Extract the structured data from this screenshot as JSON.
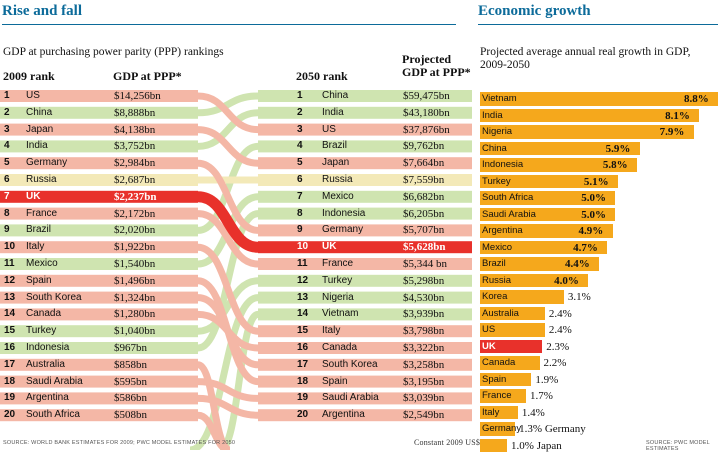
{
  "rankings": {
    "headline": "Rise and fall",
    "subtitle": "GDP at purchasing power parity (PPP) rankings",
    "col_rank_2009": "2009 rank",
    "col_gdp_2009": "GDP at PPP*",
    "col_rank_2050": "2050 rank",
    "col_gdp_2050": "Projected GDP at PPP*",
    "source": "SOURCE: WORLD BANK ESTIMATES FOR 2009; PWC MODEL ESTIMATES FOR 2050",
    "note": "Constant 2009 US$",
    "highlight_colors": {
      "rising": "#cfe4b0",
      "falling": "#f4b7a6",
      "flat": "#f3e9b8",
      "uk": "#e8312b"
    },
    "rows_2009": [
      {
        "rank": "1",
        "country": "US",
        "gdp": "$14,256bn"
      },
      {
        "rank": "2",
        "country": "China",
        "gdp": "$8,888bn"
      },
      {
        "rank": "3",
        "country": "Japan",
        "gdp": "$4,138bn"
      },
      {
        "rank": "4",
        "country": "India",
        "gdp": "$3,752bn"
      },
      {
        "rank": "5",
        "country": "Germany",
        "gdp": "$2,984bn"
      },
      {
        "rank": "6",
        "country": "Russia",
        "gdp": "$2,687bn"
      },
      {
        "rank": "7",
        "country": "UK",
        "gdp": "$2,237bn"
      },
      {
        "rank": "8",
        "country": "France",
        "gdp": "$2,172bn"
      },
      {
        "rank": "9",
        "country": "Brazil",
        "gdp": "$2,020bn"
      },
      {
        "rank": "10",
        "country": "Italy",
        "gdp": "$1,922bn"
      },
      {
        "rank": "11",
        "country": "Mexico",
        "gdp": "$1,540bn"
      },
      {
        "rank": "12",
        "country": "Spain",
        "gdp": "$1,496bn"
      },
      {
        "rank": "13",
        "country": "South Korea",
        "gdp": "$1,324bn"
      },
      {
        "rank": "14",
        "country": "Canada",
        "gdp": "$1,280bn"
      },
      {
        "rank": "15",
        "country": "Turkey",
        "gdp": "$1,040bn"
      },
      {
        "rank": "16",
        "country": "Indonesia",
        "gdp": "$967bn"
      },
      {
        "rank": "17",
        "country": "Australia",
        "gdp": "$858bn"
      },
      {
        "rank": "18",
        "country": "Saudi Arabia",
        "gdp": "$595bn"
      },
      {
        "rank": "19",
        "country": "Argentina",
        "gdp": "$586bn"
      },
      {
        "rank": "20",
        "country": "South Africa",
        "gdp": "$508bn"
      }
    ],
    "rows_2050": [
      {
        "rank": "1",
        "country": "China",
        "gdp": "$59,475bn"
      },
      {
        "rank": "2",
        "country": "India",
        "gdp": "$43,180bn"
      },
      {
        "rank": "3",
        "country": "US",
        "gdp": "$37,876bn"
      },
      {
        "rank": "4",
        "country": "Brazil",
        "gdp": "$9,762bn"
      },
      {
        "rank": "5",
        "country": "Japan",
        "gdp": "$7,664bn"
      },
      {
        "rank": "6",
        "country": "Russia",
        "gdp": "$7,559bn"
      },
      {
        "rank": "7",
        "country": "Mexico",
        "gdp": "$6,682bn"
      },
      {
        "rank": "8",
        "country": "Indonesia",
        "gdp": "$6,205bn"
      },
      {
        "rank": "9",
        "country": "Germany",
        "gdp": "$5,707bn"
      },
      {
        "rank": "10",
        "country": "UK",
        "gdp": "$5,628bn"
      },
      {
        "rank": "11",
        "country": "France",
        "gdp": "$5,344 bn"
      },
      {
        "rank": "12",
        "country": "Turkey",
        "gdp": "$5,298bn"
      },
      {
        "rank": "13",
        "country": "Nigeria",
        "gdp": "$4,530bn"
      },
      {
        "rank": "14",
        "country": "Vietnam",
        "gdp": "$3,939bn"
      },
      {
        "rank": "15",
        "country": "Italy",
        "gdp": "$3,798bn"
      },
      {
        "rank": "16",
        "country": "Canada",
        "gdp": "$3,322bn"
      },
      {
        "rank": "17",
        "country": "South Korea",
        "gdp": "$3,258bn"
      },
      {
        "rank": "18",
        "country": "Spain",
        "gdp": "$3,195bn"
      },
      {
        "rank": "19",
        "country": "Saudi Arabia",
        "gdp": "$3,039bn"
      },
      {
        "rank": "20",
        "country": "Argentina",
        "gdp": "$2,549bn"
      }
    ],
    "movements": [
      {
        "from": "1",
        "to": "3",
        "kind": "falling"
      },
      {
        "from": "2",
        "to": "1",
        "kind": "rising"
      },
      {
        "from": "3",
        "to": "5",
        "kind": "falling"
      },
      {
        "from": "4",
        "to": "2",
        "kind": "rising"
      },
      {
        "from": "5",
        "to": "9",
        "kind": "falling"
      },
      {
        "from": "6",
        "to": "6",
        "kind": "flat"
      },
      {
        "from": "7",
        "to": "10",
        "kind": "uk"
      },
      {
        "from": "8",
        "to": "11",
        "kind": "falling"
      },
      {
        "from": "9",
        "to": "4",
        "kind": "rising"
      },
      {
        "from": "10",
        "to": "15",
        "kind": "falling"
      },
      {
        "from": "11",
        "to": "7",
        "kind": "rising"
      },
      {
        "from": "12",
        "to": "18",
        "kind": "falling"
      },
      {
        "from": "13",
        "to": "17",
        "kind": "falling"
      },
      {
        "from": "14",
        "to": "16",
        "kind": "falling"
      },
      {
        "from": "15",
        "to": "12",
        "kind": "rising"
      },
      {
        "from": "16",
        "to": "8",
        "kind": "rising"
      },
      {
        "from": "17",
        "to": "",
        "kind": "falling"
      },
      {
        "from": "18",
        "to": "19",
        "kind": "falling"
      },
      {
        "from": "19",
        "to": "20",
        "kind": "falling"
      },
      {
        "from": "20",
        "to": "",
        "kind": "falling"
      },
      {
        "from": "",
        "to": "13",
        "kind": "rising"
      },
      {
        "from": "",
        "to": "14",
        "kind": "rising"
      }
    ]
  },
  "growth": {
    "headline": "Economic growth",
    "subtitle": "Projected average annual real growth in GDP, 2009-2050",
    "source": "SOURCE: PWC MODEL ESTIMATES"
  },
  "chart_data": {
    "type": "bar",
    "orientation": "horizontal",
    "title": "Economic growth",
    "subtitle": "Projected average annual real growth in GDP, 2009-2050",
    "unit": "%",
    "categories": [
      "Vietnam",
      "India",
      "Nigeria",
      "China",
      "Indonesia",
      "Turkey",
      "South Africa",
      "Saudi Arabia",
      "Argentina",
      "Mexico",
      "Brazil",
      "Russia",
      "Korea",
      "Australia",
      "US",
      "UK",
      "Canada",
      "Spain",
      "France",
      "Italy",
      "Germany",
      "Japan"
    ],
    "values": [
      8.8,
      8.1,
      7.9,
      5.9,
      5.8,
      5.1,
      5.0,
      5.0,
      4.9,
      4.7,
      4.4,
      4.0,
      3.1,
      2.4,
      2.4,
      2.3,
      2.2,
      1.9,
      1.7,
      1.4,
      1.3,
      1.0
    ],
    "value_labels": [
      "8.8%",
      "8.1%",
      "7.9%",
      "5.9%",
      "5.8%",
      "5.1%",
      "5.0%",
      "5.0%",
      "4.9%",
      "4.7%",
      "4.4%",
      "4.0%",
      "3.1%",
      "2.4%",
      "2.4%",
      "2.3%",
      "2.2%",
      "1.9%",
      "1.7%",
      "1.4%",
      "1.3% Germany",
      "1.0% Japan"
    ],
    "bar_color": "#f5a81c",
    "highlight": {
      "category": "UK",
      "color": "#e8312b"
    },
    "xlim": [
      0,
      8.8
    ],
    "grid": false,
    "legend": "none"
  }
}
